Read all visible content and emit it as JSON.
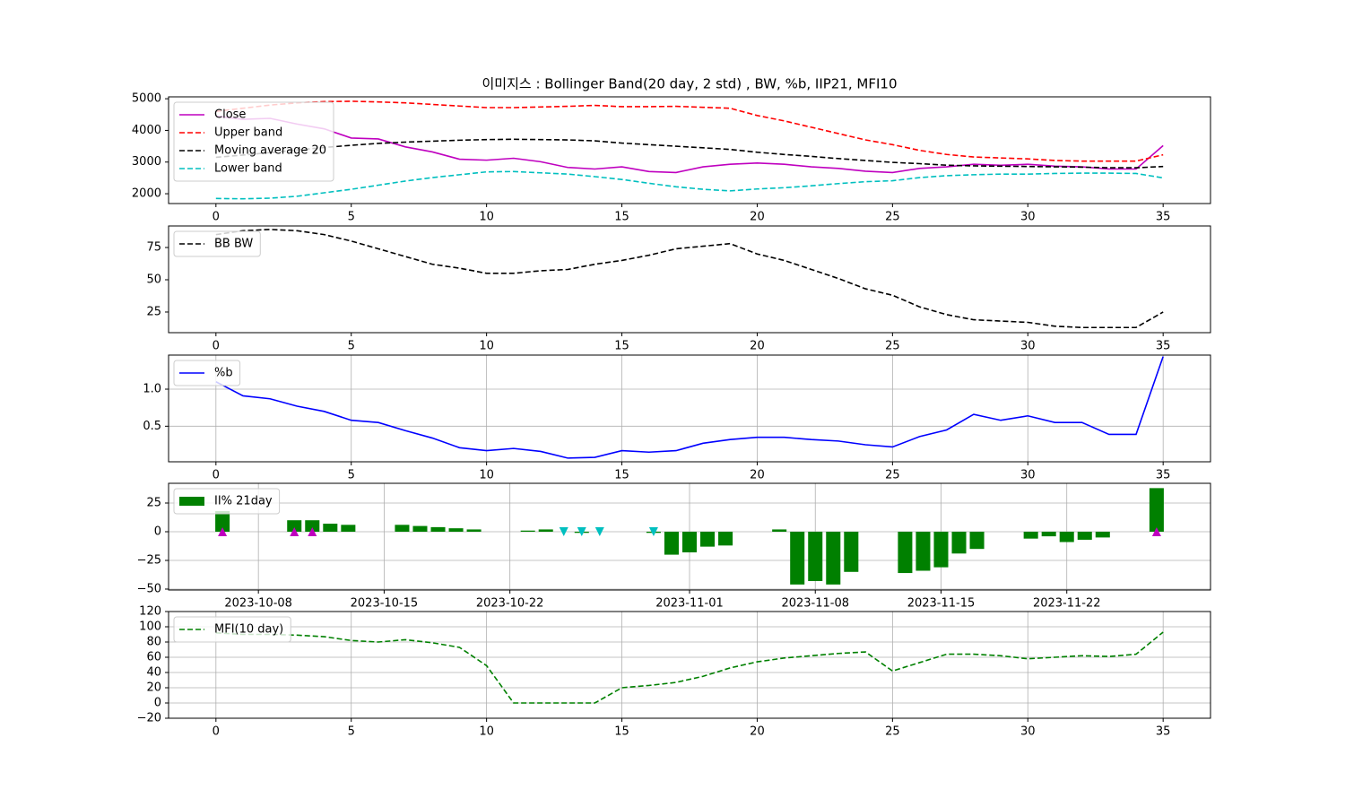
{
  "chart_data": [
    {
      "type": "line",
      "title": "이미지스 : Bollinger Band(20 day, 2 std) , BW, %b, IIP21, MFI10",
      "x": [
        0,
        1,
        2,
        3,
        4,
        5,
        6,
        7,
        8,
        9,
        10,
        11,
        12,
        13,
        14,
        15,
        16,
        17,
        18,
        19,
        20,
        21,
        22,
        23,
        24,
        25,
        26,
        27,
        28,
        29,
        30,
        31,
        32,
        33,
        34,
        35
      ],
      "series": [
        {
          "name": "Close",
          "color": "#bf00bf",
          "linestyle": "solid",
          "values": [
            4450,
            4350,
            4380,
            4200,
            4050,
            3760,
            3730,
            3480,
            3320,
            3090,
            3060,
            3120,
            3010,
            2830,
            2780,
            2850,
            2700,
            2670,
            2850,
            2930,
            2970,
            2930,
            2850,
            2800,
            2710,
            2670,
            2800,
            2850,
            2930,
            2900,
            2930,
            2870,
            2850,
            2780,
            2780,
            3520
          ]
        },
        {
          "name": "Upper band",
          "color": "#ff0000",
          "linestyle": "dashed",
          "values": [
            4600,
            4700,
            4800,
            4870,
            4910,
            4920,
            4900,
            4870,
            4820,
            4770,
            4720,
            4720,
            4740,
            4760,
            4790,
            4750,
            4750,
            4760,
            4730,
            4700,
            4470,
            4300,
            4100,
            3900,
            3700,
            3550,
            3370,
            3240,
            3160,
            3130,
            3100,
            3050,
            3030,
            3030,
            3030,
            3230
          ]
        },
        {
          "name": "Moving average 20",
          "color": "#000000",
          "linestyle": "dashed",
          "values": [
            3150,
            3220,
            3300,
            3380,
            3460,
            3530,
            3590,
            3630,
            3660,
            3690,
            3710,
            3720,
            3710,
            3700,
            3670,
            3600,
            3550,
            3500,
            3450,
            3400,
            3310,
            3240,
            3180,
            3110,
            3050,
            2990,
            2950,
            2900,
            2880,
            2870,
            2860,
            2850,
            2840,
            2820,
            2820,
            2860
          ]
        },
        {
          "name": "Lower band",
          "color": "#00bfbf",
          "linestyle": "dashed",
          "values": [
            1850,
            1840,
            1860,
            1920,
            2030,
            2140,
            2270,
            2400,
            2510,
            2600,
            2690,
            2700,
            2660,
            2620,
            2540,
            2450,
            2330,
            2220,
            2140,
            2090,
            2150,
            2190,
            2250,
            2320,
            2380,
            2410,
            2510,
            2570,
            2600,
            2620,
            2620,
            2640,
            2650,
            2650,
            2640,
            2500
          ]
        }
      ],
      "xlim": [
        -1.75,
        36.75
      ],
      "xticks": [
        0,
        5,
        10,
        15,
        20,
        25,
        30,
        35
      ],
      "ylim": [
        1690,
        5060
      ],
      "yticks": [
        2000,
        3000,
        4000,
        5000
      ],
      "grid": false,
      "legend": "upper left"
    },
    {
      "type": "line",
      "x": [
        0,
        1,
        2,
        3,
        4,
        5,
        6,
        7,
        8,
        9,
        10,
        11,
        12,
        13,
        14,
        15,
        16,
        17,
        18,
        19,
        20,
        21,
        22,
        23,
        24,
        25,
        26,
        27,
        28,
        29,
        30,
        31,
        32,
        33,
        34,
        35
      ],
      "series": [
        {
          "name": "BB BW",
          "color": "#000000",
          "linestyle": "dashed",
          "values": [
            85,
            88,
            89,
            88,
            85,
            80,
            74,
            68,
            62,
            59,
            55,
            55,
            57,
            58,
            62,
            65,
            69,
            74,
            76,
            78,
            70,
            65,
            58,
            51,
            43,
            38,
            29,
            23,
            19,
            18,
            17,
            14,
            13,
            13,
            13,
            25
          ]
        }
      ],
      "xlim": [
        -1.75,
        36.75
      ],
      "xticks": [
        0,
        5,
        10,
        15,
        20,
        25,
        30,
        35
      ],
      "ylim": [
        9,
        91.7
      ],
      "yticks": [
        25,
        50,
        75
      ],
      "grid": false,
      "legend": "upper left"
    },
    {
      "type": "line",
      "x": [
        0,
        1,
        2,
        3,
        4,
        5,
        6,
        7,
        8,
        9,
        10,
        11,
        12,
        13,
        14,
        15,
        16,
        17,
        18,
        19,
        20,
        21,
        22,
        23,
        24,
        25,
        26,
        27,
        28,
        29,
        30,
        31,
        32,
        33,
        34,
        35
      ],
      "series": [
        {
          "name": "%b",
          "color": "#0000ff",
          "linestyle": "solid",
          "values": [
            1.1,
            0.91,
            0.87,
            0.77,
            0.7,
            0.58,
            0.55,
            0.44,
            0.34,
            0.21,
            0.17,
            0.2,
            0.16,
            0.07,
            0.08,
            0.17,
            0.15,
            0.17,
            0.27,
            0.32,
            0.35,
            0.35,
            0.32,
            0.3,
            0.25,
            0.22,
            0.36,
            0.45,
            0.66,
            0.58,
            0.64,
            0.55,
            0.55,
            0.39,
            0.39,
            1.44
          ]
        }
      ],
      "xlim": [
        -1.75,
        36.75
      ],
      "xticks": [
        0,
        5,
        10,
        15,
        20,
        25,
        30,
        35
      ],
      "ylim": [
        0.02,
        1.46
      ],
      "yticks": [
        0.5,
        {
          "value": 1,
          "label": "1.0"
        }
      ],
      "grid": true,
      "legend": "upper left"
    },
    {
      "type": "bar",
      "x": [
        "2023-10-06",
        "2023-10-10",
        "2023-10-11",
        "2023-10-12",
        "2023-10-13",
        "2023-10-16",
        "2023-10-17",
        "2023-10-18",
        "2023-10-19",
        "2023-10-20",
        "2023-10-23",
        "2023-10-24",
        "2023-10-25",
        "2023-10-26",
        "2023-10-27",
        "2023-10-30",
        "2023-10-31",
        "2023-11-01",
        "2023-11-02",
        "2023-11-03",
        "2023-11-06",
        "2023-11-07",
        "2023-11-08",
        "2023-11-09",
        "2023-11-10",
        "2023-11-13",
        "2023-11-14",
        "2023-11-15",
        "2023-11-16",
        "2023-11-17",
        "2023-11-20",
        "2023-11-21",
        "2023-11-22",
        "2023-11-23",
        "2023-11-24",
        "2023-11-27"
      ],
      "series": [
        {
          "name": "II% 21day",
          "color": "#008000",
          "values": [
            18,
            10,
            10,
            7,
            6,
            6,
            5,
            4,
            3,
            2,
            1,
            2,
            0,
            -1,
            0,
            -1,
            -20,
            -18,
            -13,
            -12,
            2,
            -46,
            -43,
            -46,
            -35,
            -36,
            -34,
            -31,
            -19,
            -15,
            -6,
            -4,
            -9,
            -7,
            -5,
            38
          ]
        }
      ],
      "up_markers": {
        "color": "#bf00bf",
        "x": [
          "2023-10-06",
          "2023-10-10",
          "2023-10-11",
          "2023-11-27"
        ],
        "values": [
          0,
          0,
          0,
          0
        ]
      },
      "down_markers": {
        "color": "#00bfbf",
        "x": [
          "2023-10-25",
          "2023-10-26",
          "2023-10-27",
          "2023-10-30"
        ],
        "values": [
          0,
          0,
          0,
          0
        ]
      },
      "xlim": [
        "2023-10-03",
        "2023-11-30"
      ],
      "xticks": [
        "2023-10-08",
        "2023-10-15",
        "2023-10-22",
        "2023-11-01",
        "2023-11-08",
        "2023-11-15",
        "2023-11-22"
      ],
      "ylim": [
        -50.8,
        42.2
      ],
      "yticks": [
        {
          "value": -50,
          "label": "−50"
        },
        {
          "value": -25,
          "label": "−25"
        },
        0,
        25
      ],
      "grid": true,
      "legend": "upper left"
    },
    {
      "type": "line",
      "x": [
        0,
        1,
        2,
        3,
        4,
        5,
        6,
        7,
        8,
        9,
        10,
        11,
        12,
        13,
        14,
        15,
        16,
        17,
        18,
        19,
        20,
        21,
        22,
        23,
        24,
        25,
        26,
        27,
        28,
        29,
        30,
        31,
        32,
        33,
        34,
        35
      ],
      "series": [
        {
          "name": "MFI(10 day)",
          "color": "#008000",
          "linestyle": "dashed",
          "values": [
            92,
            90,
            90,
            89,
            87,
            82,
            80,
            83,
            79,
            73,
            49,
            0,
            0,
            0,
            0,
            20,
            23,
            27,
            35,
            46,
            54,
            59,
            62,
            65,
            67,
            42,
            53,
            64,
            64,
            62,
            58,
            60,
            62,
            61,
            64,
            93
          ]
        }
      ],
      "xlim": [
        -1.75,
        36.75
      ],
      "xticks": [
        0,
        5,
        10,
        15,
        20,
        25,
        30,
        35
      ],
      "ylim": [
        -20,
        120
      ],
      "yticks": [
        {
          "value": -20,
          "label": "−20"
        },
        0,
        20,
        40,
        60,
        80,
        100,
        120
      ],
      "grid": true,
      "legend": "upper left"
    }
  ]
}
